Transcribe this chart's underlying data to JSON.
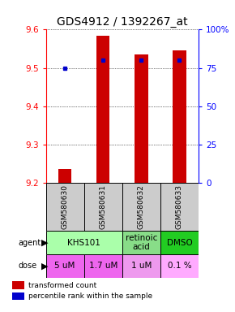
{
  "title": "GDS4912 / 1392267_at",
  "samples": [
    "GSM580630",
    "GSM580631",
    "GSM580632",
    "GSM580633"
  ],
  "bar_values": [
    9.235,
    9.585,
    9.535,
    9.545
  ],
  "percentile_values": [
    75,
    80,
    80,
    80
  ],
  "y_min": 9.2,
  "y_max": 9.6,
  "y_ticks": [
    9.2,
    9.3,
    9.4,
    9.5,
    9.6
  ],
  "y2_ticks": [
    0,
    25,
    50,
    75,
    100
  ],
  "y2_labels": [
    "0",
    "25",
    "50",
    "75",
    "100%"
  ],
  "bar_color": "#cc0000",
  "dot_color": "#0000cc",
  "agent_groups": [
    {
      "label": "KHS101",
      "cols": [
        0,
        1
      ],
      "color": "#aaffaa"
    },
    {
      "label": "retinoic\nacid",
      "cols": [
        2
      ],
      "color": "#88dd88"
    },
    {
      "label": "DMSO",
      "cols": [
        3
      ],
      "color": "#22cc22"
    }
  ],
  "doses": [
    "5 uM",
    "1.7 uM",
    "1 uM",
    "0.1 %"
  ],
  "dose_colors": [
    "#ee66ee",
    "#ee66ee",
    "#ee99ee",
    "#ffaaff"
  ],
  "sample_box_color": "#cccccc",
  "legend_red": "transformed count",
  "legend_blue": "percentile rank within the sample",
  "title_fontsize": 10,
  "tick_fontsize": 7.5,
  "table_fontsize": 7.5
}
